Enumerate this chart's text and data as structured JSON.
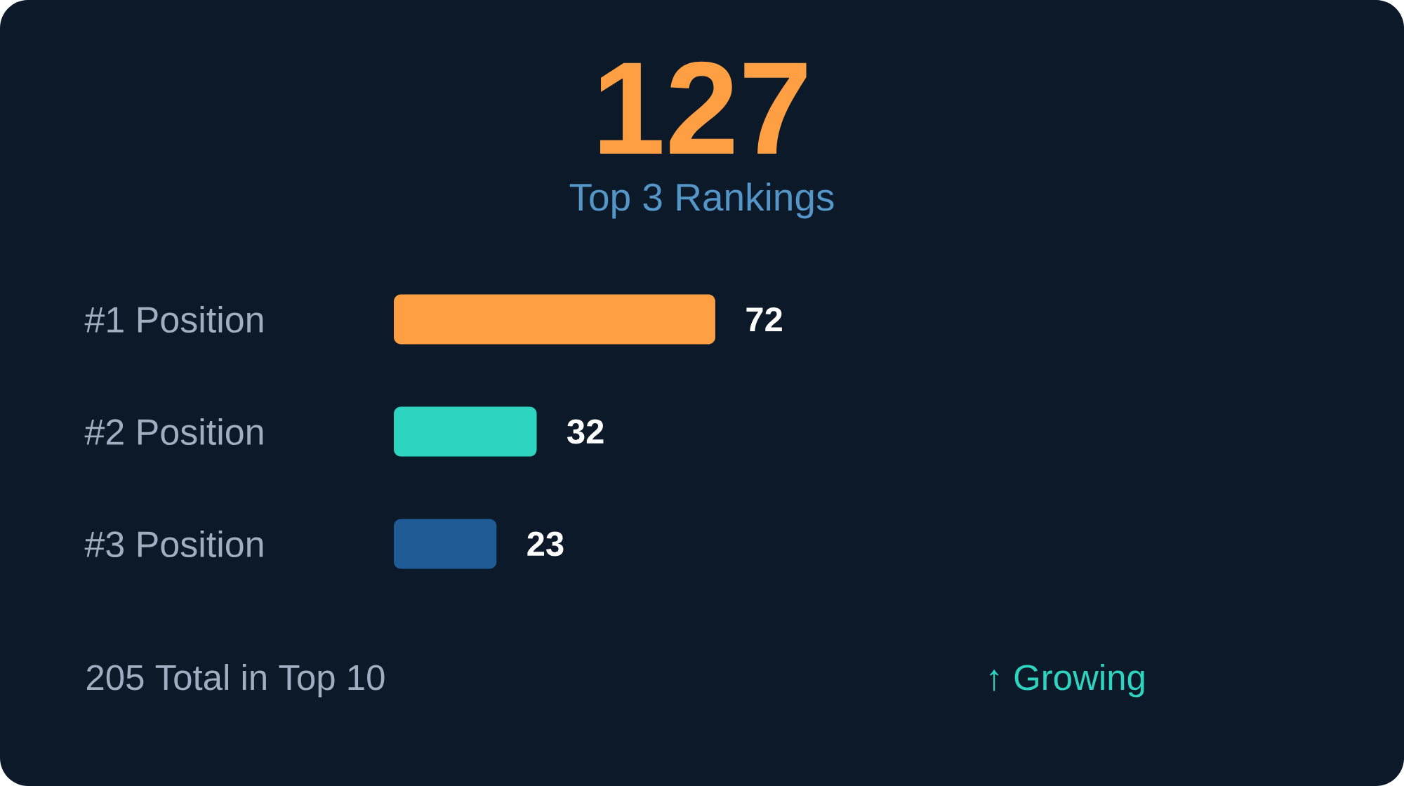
{
  "chart_data": {
    "type": "bar",
    "orientation": "horizontal",
    "title": "127",
    "subtitle": "Top 3 Rankings",
    "categories": [
      "#1 Position",
      "#2 Position",
      "#3 Position"
    ],
    "values": [
      72,
      32,
      23
    ],
    "colors": [
      "#ff9f43",
      "#2dd4bf",
      "#1f5b94"
    ],
    "data_labels": true,
    "annotations": [
      "205 Total in Top 10",
      "↑ Growing"
    ]
  }
}
